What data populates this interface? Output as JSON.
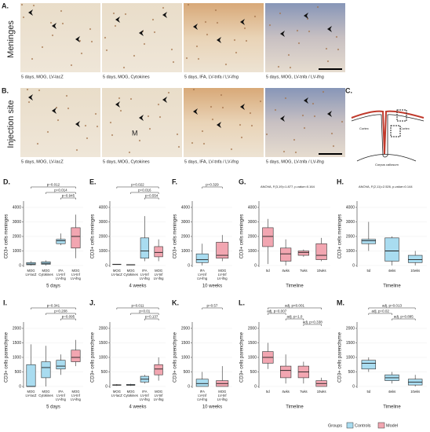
{
  "micrographs": {
    "rows": [
      {
        "label": "A.",
        "title": "Meninges",
        "captions": [
          "5 days, MOG, LV-lacZ",
          "5 days, MOG, Cytokines",
          "5 days, IFA, LV-tnfa / LV-ifng",
          "5 days, MOG, LV-tnfa / LV-ifng"
        ]
      },
      {
        "label": "B.",
        "title": "Injection site",
        "captions": [
          "5 days, MOG, LV-lacZ",
          "5 days, MOG, Cytokines",
          "5 days, IFA, LV-tnfa / LV-ifng",
          "5 days, MOG, LV-tnfa / LV-ifng"
        ],
        "marker": "M"
      }
    ]
  },
  "diagram": {
    "label": "C.",
    "texts": [
      "Cortex",
      "Cortex",
      "Corpus callosum"
    ]
  },
  "legend": {
    "title": "Groups",
    "items": [
      {
        "name": "Controls",
        "color": "#a9dcf0"
      },
      {
        "name": "Model",
        "color": "#f2a6b1"
      }
    ]
  },
  "chart_data": [
    {
      "type": "box",
      "label": "D.",
      "ylabel": "CD3+ cells meninges",
      "xlabel": "5 days",
      "categories": [
        [
          "MOG",
          "LV-lacZ"
        ],
        [
          "MOG",
          "Cytokines"
        ],
        [
          "IFA",
          "LV-tnf",
          "LV-ifng"
        ],
        [
          "MOG",
          "LV-tnf",
          "LV-ifng"
        ]
      ],
      "colors": [
        "#a9dcf0",
        "#a9dcf0",
        "#a9dcf0",
        "#f2a6b1"
      ],
      "ylim": [
        0,
        4000
      ],
      "yticks": [
        0,
        1000,
        2000,
        3000,
        4000
      ],
      "boxes": [
        {
          "whislo": 0,
          "q1": 50,
          "median": 100,
          "q3": 200,
          "whishi": 300
        },
        {
          "whislo": 0,
          "q1": 80,
          "median": 150,
          "q3": 250,
          "whishi": 350
        },
        {
          "whislo": 1400,
          "q1": 1500,
          "median": 1700,
          "q3": 1800,
          "whishi": 2200
        },
        {
          "whislo": 500,
          "q1": 1200,
          "median": 2000,
          "q3": 2600,
          "whishi": 3500
        }
      ],
      "comparisons": [
        {
          "label": "p=0.012",
          "pair": [
            0,
            3
          ]
        },
        {
          "label": "p=0.014",
          "pair": [
            1,
            3
          ]
        },
        {
          "label": "p=0.945",
          "pair": [
            2,
            3
          ]
        }
      ]
    },
    {
      "type": "box",
      "label": "E.",
      "ylabel": "CD3+ cells meninges",
      "xlabel": "4 weeks",
      "categories": [
        [
          "MOG",
          "LV-lacZ"
        ],
        [
          "MOG",
          "Cytokines"
        ],
        [
          "IFA",
          "LV-tnf",
          "LV-ifng"
        ],
        [
          "MOG",
          "LV-tnf",
          "LV-ifng"
        ]
      ],
      "colors": [
        "#a9dcf0",
        "#a9dcf0",
        "#a9dcf0",
        "#f2a6b1"
      ],
      "ylim": [
        0,
        4000
      ],
      "yticks": [
        0,
        1000,
        2000,
        3000,
        4000
      ],
      "boxes": [
        {
          "whislo": 60,
          "q1": 70,
          "median": 80,
          "q3": 90,
          "whishi": 100
        },
        {
          "whislo": 30,
          "q1": 40,
          "median": 50,
          "q3": 60,
          "whishi": 70
        },
        {
          "whislo": 300,
          "q1": 500,
          "median": 1000,
          "q3": 1900,
          "whishi": 3400
        },
        {
          "whislo": 300,
          "q1": 600,
          "median": 900,
          "q3": 1300,
          "whishi": 1800
        }
      ],
      "comparisons": [
        {
          "label": "p=0.022",
          "pair": [
            0,
            3
          ]
        },
        {
          "label": "p=0.016",
          "pair": [
            1,
            3
          ]
        },
        {
          "label": "p=0.554",
          "pair": [
            2,
            3
          ]
        }
      ]
    },
    {
      "type": "box",
      "label": "F.",
      "ylabel": "CD3+ cells meninges",
      "xlabel": "10 weeks",
      "categories": [
        [
          "IFA",
          "LV-tnf",
          "LV-ifng"
        ],
        [
          "MOG",
          "LV-tnf",
          "LV-ifng"
        ]
      ],
      "colors": [
        "#a9dcf0",
        "#f2a6b1"
      ],
      "ylim": [
        0,
        4000
      ],
      "yticks": [
        0,
        1000,
        2000,
        3000,
        4000
      ],
      "boxes": [
        {
          "whislo": 0,
          "q1": 200,
          "median": 400,
          "q3": 800,
          "whishi": 1500
        },
        {
          "whislo": 300,
          "q1": 500,
          "median": 700,
          "q3": 1600,
          "whishi": 2100
        }
      ],
      "comparisons": [
        {
          "label": "p=0.329",
          "pair": [
            0,
            1
          ]
        }
      ]
    },
    {
      "type": "box",
      "label": "G.",
      "ylabel": "CD3+ cells meninges",
      "xlabel": "Timeline",
      "annotation": "ANOVA, F(3,19)=1.877, p-value=0.164",
      "categories": [
        [
          "5d"
        ],
        [
          "4wks"
        ],
        [
          "7wks"
        ],
        [
          "10wks"
        ]
      ],
      "colors": [
        "#f2a6b1",
        "#f2a6b1",
        "#f2a6b1",
        "#f2a6b1"
      ],
      "ylim": [
        0,
        4000
      ],
      "yticks": [
        0,
        1000,
        2000,
        3000,
        4000
      ],
      "boxes": [
        {
          "whislo": 100,
          "q1": 1300,
          "median": 2000,
          "q3": 2600,
          "whishi": 3200
        },
        {
          "whislo": 0,
          "q1": 300,
          "median": 800,
          "q3": 1200,
          "whishi": 1800
        },
        {
          "whislo": 600,
          "q1": 700,
          "median": 900,
          "q3": 1000,
          "whishi": 1100
        },
        {
          "whislo": 300,
          "q1": 400,
          "median": 700,
          "q3": 1500,
          "whishi": 1900
        }
      ],
      "comparisons": []
    },
    {
      "type": "box",
      "label": "H.",
      "ylabel": "CD3+ cells meninges",
      "xlabel": "Timeline",
      "annotation": "ANOVA, F(2,11)=2.526, p-value=0.144",
      "categories": [
        [
          "5d"
        ],
        [
          "4wks"
        ],
        [
          "10wks"
        ]
      ],
      "colors": [
        "#a9dcf0",
        "#a9dcf0",
        "#a9dcf0"
      ],
      "ylim": [
        0,
        4000
      ],
      "yticks": [
        0,
        1000,
        2000,
        3000,
        4000
      ],
      "boxes": [
        {
          "whislo": 1000,
          "q1": 1500,
          "median": 1700,
          "q3": 1800,
          "whishi": 3000
        },
        {
          "whislo": 0,
          "q1": 300,
          "median": 1000,
          "q3": 1900,
          "whishi": 2000
        },
        {
          "whislo": 0,
          "q1": 200,
          "median": 400,
          "q3": 700,
          "whishi": 1000
        }
      ],
      "comparisons": []
    },
    {
      "type": "box",
      "label": "I.",
      "ylabel": "CD3+ cells parenchyme",
      "xlabel": "5 days",
      "categories": [
        [
          "MOG",
          "LV-lacZ"
        ],
        [
          "MOG",
          "Cytokines"
        ],
        [
          "IFA",
          "LV-tnf",
          "LV-ifng"
        ],
        [
          "MOG",
          "LV-tnf",
          "LV-ifng"
        ]
      ],
      "colors": [
        "#a9dcf0",
        "#a9dcf0",
        "#a9dcf0",
        "#f2a6b1"
      ],
      "ylim": [
        0,
        2000
      ],
      "yticks": [
        0,
        500,
        1000,
        1500,
        2000
      ],
      "boxes": [
        {
          "whislo": 0,
          "q1": 0,
          "median": 0,
          "q3": 750,
          "whishi": 1450
        },
        {
          "whislo": 0,
          "q1": 300,
          "median": 650,
          "q3": 850,
          "whishi": 1400
        },
        {
          "whislo": 400,
          "q1": 600,
          "median": 700,
          "q3": 900,
          "whishi": 1100
        },
        {
          "whislo": 700,
          "q1": 850,
          "median": 1000,
          "q3": 1250,
          "whishi": 1600
        }
      ],
      "comparisons": [
        {
          "label": "p=0.341",
          "pair": [
            0,
            3
          ]
        },
        {
          "label": "p=0.208",
          "pair": [
            1,
            3
          ]
        },
        {
          "label": "p=0.095",
          "pair": [
            2,
            3
          ]
        }
      ]
    },
    {
      "type": "box",
      "label": "J.",
      "ylabel": "CD3+ cells parenchyme",
      "xlabel": "4 weeks",
      "categories": [
        [
          "MOG",
          "LV-lacZ"
        ],
        [
          "MOG",
          "Cytokines"
        ],
        [
          "IFA",
          "LV-tnf",
          "LV-ifng"
        ],
        [
          "MOG",
          "LV-tnf",
          "LV-ifng"
        ]
      ],
      "colors": [
        "#a9dcf0",
        "#a9dcf0",
        "#a9dcf0",
        "#f2a6b1"
      ],
      "ylim": [
        0,
        2000
      ],
      "yticks": [
        0,
        500,
        1000,
        1500,
        2000
      ],
      "boxes": [
        {
          "whislo": 20,
          "q1": 40,
          "median": 50,
          "q3": 60,
          "whishi": 80
        },
        {
          "whislo": 20,
          "q1": 40,
          "median": 50,
          "q3": 70,
          "whishi": 90
        },
        {
          "whislo": 100,
          "q1": 150,
          "median": 250,
          "q3": 350,
          "whishi": 400
        },
        {
          "whislo": 200,
          "q1": 400,
          "median": 600,
          "q3": 750,
          "whishi": 1000
        }
      ],
      "comparisons": [
        {
          "label": "p=0.011",
          "pair": [
            0,
            3
          ]
        },
        {
          "label": "p=0.01",
          "pair": [
            1,
            3
          ]
        },
        {
          "label": "p=0.137",
          "pair": [
            2,
            3
          ]
        }
      ]
    },
    {
      "type": "box",
      "label": "K.",
      "ylabel": "CD3+ cells parenchyme",
      "xlabel": "10 weeks",
      "categories": [
        [
          "IFA",
          "LV-tnf",
          "LV-ifng"
        ],
        [
          "MOG",
          "LV-tnf",
          "LV-ifng"
        ]
      ],
      "colors": [
        "#a9dcf0",
        "#f2a6b1"
      ],
      "ylim": [
        0,
        2000
      ],
      "yticks": [
        0,
        500,
        1000,
        1500,
        2000
      ],
      "boxes": [
        {
          "whislo": 0,
          "q1": 0,
          "median": 100,
          "q3": 250,
          "whishi": 500
        },
        {
          "whislo": 0,
          "q1": 0,
          "median": 100,
          "q3": 200,
          "whishi": 700
        }
      ],
      "comparisons": [
        {
          "label": "p=0.57",
          "pair": [
            0,
            1
          ]
        }
      ]
    },
    {
      "type": "box",
      "label": "L.",
      "ylabel": "CD3+ cells parenchyme",
      "xlabel": "Timeline",
      "categories": [
        [
          "5d"
        ],
        [
          "4wks"
        ],
        [
          "7wks"
        ],
        [
          "10wks"
        ]
      ],
      "colors": [
        "#f2a6b1",
        "#f2a6b1",
        "#f2a6b1",
        "#f2a6b1"
      ],
      "ylim": [
        0,
        2000
      ],
      "yticks": [
        0,
        500,
        1000,
        1500,
        2000
      ],
      "boxes": [
        {
          "whislo": 600,
          "q1": 800,
          "median": 1000,
          "q3": 1200,
          "whishi": 1500
        },
        {
          "whislo": 100,
          "q1": 300,
          "median": 550,
          "q3": 700,
          "whishi": 1100
        },
        {
          "whislo": 100,
          "q1": 300,
          "median": 500,
          "q3": 700,
          "whishi": 850
        },
        {
          "whislo": 0,
          "q1": 0,
          "median": 100,
          "q3": 200,
          "whishi": 300
        }
      ],
      "comparisons": [
        {
          "label": "adj. p<0.001",
          "pair": [
            0,
            3
          ]
        },
        {
          "label": "adj. p=0.007",
          "pair": [
            0,
            1
          ]
        },
        {
          "label": "adj. p=1.0",
          "pair": [
            1,
            2
          ]
        },
        {
          "label": "adj. p=0.338",
          "pair": [
            2,
            3
          ]
        }
      ]
    },
    {
      "type": "box",
      "label": "M.",
      "ylabel": "CD3+ cells parenchyme",
      "xlabel": "Timeline",
      "categories": [
        [
          "5d"
        ],
        [
          "4wks"
        ],
        [
          "10wks"
        ]
      ],
      "colors": [
        "#a9dcf0",
        "#a9dcf0",
        "#a9dcf0"
      ],
      "ylim": [
        0,
        2000
      ],
      "yticks": [
        0,
        500,
        1000,
        1500,
        2000
      ],
      "boxes": [
        {
          "whislo": 500,
          "q1": 600,
          "median": 800,
          "q3": 900,
          "whishi": 1000
        },
        {
          "whislo": 100,
          "q1": 200,
          "median": 300,
          "q3": 400,
          "whishi": 500
        },
        {
          "whislo": 0,
          "q1": 50,
          "median": 150,
          "q3": 250,
          "whishi": 400
        }
      ],
      "comparisons": [
        {
          "label": "adj. p=0.013",
          "pair": [
            0,
            2
          ]
        },
        {
          "label": "adj. p=0.02",
          "pair": [
            0,
            1
          ]
        },
        {
          "label": "adj. p=0.895",
          "pair": [
            1,
            2
          ]
        }
      ]
    }
  ]
}
